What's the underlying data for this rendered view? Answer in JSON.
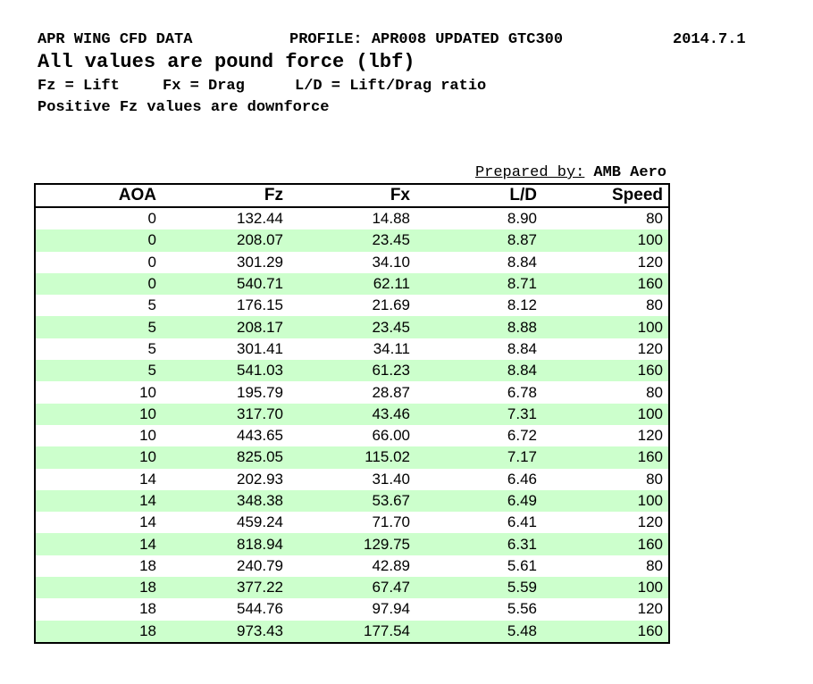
{
  "header": {
    "title": "APR WING CFD DATA",
    "profile": "PROFILE: APR008 UPDATED GTC300",
    "date": "2014.7.1",
    "units_note": "All values are pound force (lbf)",
    "legend_fz": "Fz = Lift",
    "legend_fx": "Fx = Drag",
    "legend_ld": "L/D = Lift/Drag ratio",
    "downforce_note": "Positive Fz values are downforce"
  },
  "prepared_by": {
    "label": "Prepared by:",
    "value": "AMB Aero"
  },
  "colors": {
    "stripe_green": "#ccffcc",
    "border": "#000000",
    "text": "#000000",
    "page_background": "#ffffff"
  },
  "table": {
    "columns": [
      "AOA",
      "Fz",
      "Fx",
      "L/D",
      "Speed"
    ],
    "rows": [
      [
        "0",
        "132.44",
        "14.88",
        "8.90",
        "80"
      ],
      [
        "0",
        "208.07",
        "23.45",
        "8.87",
        "100"
      ],
      [
        "0",
        "301.29",
        "34.10",
        "8.84",
        "120"
      ],
      [
        "0",
        "540.71",
        "62.11",
        "8.71",
        "160"
      ],
      [
        "5",
        "176.15",
        "21.69",
        "8.12",
        "80"
      ],
      [
        "5",
        "208.17",
        "23.45",
        "8.88",
        "100"
      ],
      [
        "5",
        "301.41",
        "34.11",
        "8.84",
        "120"
      ],
      [
        "5",
        "541.03",
        "61.23",
        "8.84",
        "160"
      ],
      [
        "10",
        "195.79",
        "28.87",
        "6.78",
        "80"
      ],
      [
        "10",
        "317.70",
        "43.46",
        "7.31",
        "100"
      ],
      [
        "10",
        "443.65",
        "66.00",
        "6.72",
        "120"
      ],
      [
        "10",
        "825.05",
        "115.02",
        "7.17",
        "160"
      ],
      [
        "14",
        "202.93",
        "31.40",
        "6.46",
        "80"
      ],
      [
        "14",
        "348.38",
        "53.67",
        "6.49",
        "100"
      ],
      [
        "14",
        "459.24",
        "71.70",
        "6.41",
        "120"
      ],
      [
        "14",
        "818.94",
        "129.75",
        "6.31",
        "160"
      ],
      [
        "18",
        "240.79",
        "42.89",
        "5.61",
        "80"
      ],
      [
        "18",
        "377.22",
        "67.47",
        "5.59",
        "100"
      ],
      [
        "18",
        "544.76",
        "97.94",
        "5.56",
        "120"
      ],
      [
        "18",
        "973.43",
        "177.54",
        "5.48",
        "160"
      ]
    ]
  }
}
